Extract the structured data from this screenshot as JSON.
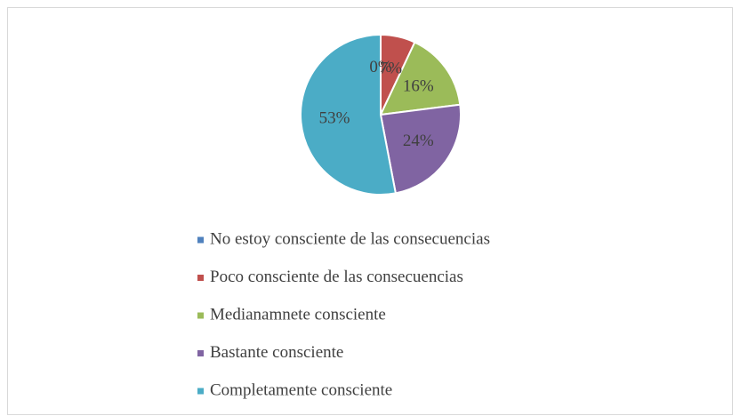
{
  "chart_data": {
    "type": "pie",
    "categories": [
      "No estoy consciente de las consecuencias",
      "Poco consciente de las consecuencias",
      "Medianamnete consciente",
      "Bastante consciente",
      "Completamente consciente"
    ],
    "values": [
      0,
      7,
      16,
      24,
      53
    ],
    "value_labels": [
      "0%",
      "7%",
      "16%",
      "24%",
      "53%"
    ],
    "colors": [
      "#4f81bd",
      "#c0504d",
      "#9bbb59",
      "#8064a2",
      "#4bacc6"
    ],
    "legend": "bottom"
  }
}
